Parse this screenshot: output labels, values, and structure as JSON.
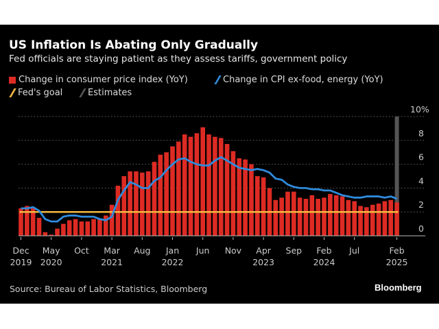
{
  "chart_data": {
    "type": "bar",
    "title": "US Inflation Is Abating Only Gradually",
    "subtitle": "Fed officials are staying patient as they assess tariffs, government policy",
    "source": "Source: Bureau of Labor Statistics, Bloomberg",
    "brand": "Bloomberg",
    "legend": [
      {
        "label": "Change in consumer price index (YoY)",
        "color": "#dd2b24",
        "kind": "bar"
      },
      {
        "label": "Change in CPI ex-food, energy (YoY)",
        "color": "#2f8bdc",
        "kind": "line"
      },
      {
        "label": "Fed's goal",
        "color": "#f5b841",
        "kind": "line"
      },
      {
        "label": "Estimates",
        "color": "#555555",
        "kind": "line"
      }
    ],
    "legend_placement": "top-left",
    "ylim": [
      0,
      10
    ],
    "y_ticks": [
      "0",
      "2",
      "4",
      "6",
      "8",
      "10%"
    ],
    "grid": true,
    "x_start": "2019-12",
    "x_ticks": [
      {
        "index": 0,
        "label": "Dec",
        "year": "2019"
      },
      {
        "index": 5,
        "label": "May",
        "year": "2020"
      },
      {
        "index": 10,
        "label": "Oct",
        "year": ""
      },
      {
        "index": 15,
        "label": "Mar",
        "year": "2021"
      },
      {
        "index": 20,
        "label": "Aug",
        "year": ""
      },
      {
        "index": 25,
        "label": "Jan",
        "year": "2022"
      },
      {
        "index": 30,
        "label": "Jun",
        "year": ""
      },
      {
        "index": 35,
        "label": "Nov",
        "year": ""
      },
      {
        "index": 40,
        "label": "Apr",
        "year": "2023"
      },
      {
        "index": 45,
        "label": "Sep",
        "year": ""
      },
      {
        "index": 50,
        "label": "Feb",
        "year": "2024"
      },
      {
        "index": 55,
        "label": "Jul",
        "year": ""
      },
      {
        "index": 62,
        "label": "Feb",
        "year": "2025"
      }
    ],
    "series": [
      {
        "name": "Change in consumer price index (YoY)",
        "type": "bar",
        "values": [
          2.3,
          2.5,
          2.3,
          1.5,
          0.3,
          0.1,
          0.6,
          1.0,
          1.3,
          1.4,
          1.2,
          1.2,
          1.4,
          1.4,
          1.7,
          2.6,
          4.2,
          5.0,
          5.4,
          5.4,
          5.3,
          5.4,
          6.2,
          6.8,
          7.0,
          7.5,
          7.9,
          8.5,
          8.3,
          8.6,
          9.1,
          8.5,
          8.3,
          8.2,
          7.7,
          7.1,
          6.5,
          6.4,
          6.0,
          5.0,
          4.9,
          4.0,
          3.0,
          3.2,
          3.7,
          3.7,
          3.2,
          3.1,
          3.4,
          3.1,
          3.2,
          3.5,
          3.4,
          3.3,
          3.0,
          2.9,
          2.5,
          2.4,
          2.6,
          2.7,
          2.9,
          3.0,
          2.8
        ]
      },
      {
        "name": "Change in CPI ex-food, energy (YoY)",
        "type": "line",
        "values": [
          2.3,
          2.3,
          2.4,
          2.1,
          1.4,
          1.2,
          1.2,
          1.6,
          1.7,
          1.7,
          1.6,
          1.6,
          1.6,
          1.4,
          1.3,
          1.6,
          3.0,
          3.8,
          4.5,
          4.3,
          4.0,
          4.0,
          4.6,
          4.9,
          5.5,
          6.0,
          6.4,
          6.5,
          6.2,
          6.0,
          5.9,
          5.9,
          6.3,
          6.6,
          6.3,
          6.0,
          5.7,
          5.6,
          5.5,
          5.6,
          5.5,
          5.3,
          4.8,
          4.7,
          4.3,
          4.1,
          4.0,
          4.0,
          3.9,
          3.9,
          3.8,
          3.8,
          3.6,
          3.4,
          3.3,
          3.2,
          3.2,
          3.3,
          3.3,
          3.3,
          3.2,
          3.3,
          3.1
        ]
      },
      {
        "name": "Fed's goal",
        "type": "hline",
        "value": 2
      }
    ],
    "estimates_index": 62
  }
}
